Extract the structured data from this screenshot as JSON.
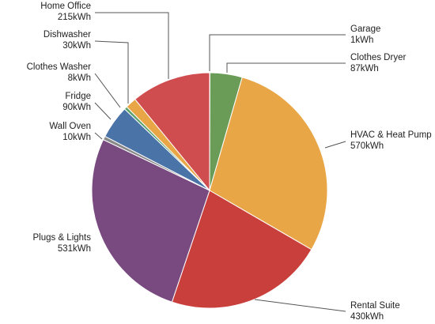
{
  "chart_data": {
    "type": "pie",
    "title": "",
    "unit": "kWh",
    "slices": [
      {
        "name": "Garage",
        "value": 1,
        "value_label": "1kWh",
        "color": "#6a9c57"
      },
      {
        "name": "Clothes Dryer",
        "value": 87,
        "value_label": "87kWh",
        "color": "#6a9c57"
      },
      {
        "name": "HVAC & Heat Pump",
        "value": 570,
        "value_label": "570kWh",
        "color": "#e9a646"
      },
      {
        "name": "Rental Suite",
        "value": 430,
        "value_label": "430kWh",
        "color": "#c93f3c"
      },
      {
        "name": "Plugs & Lights",
        "value": 531,
        "value_label": "531kWh",
        "color": "#784a80"
      },
      {
        "name": "Wall Oven",
        "value": 10,
        "value_label": "10kWh",
        "color": "#8a8a8a"
      },
      {
        "name": "Fridge",
        "value": 90,
        "value_label": "90kWh",
        "color": "#4a73a8"
      },
      {
        "name": "Clothes Washer",
        "value": 8,
        "value_label": "8kWh",
        "color": "#5aa06a"
      },
      {
        "name": "Dishwasher",
        "value": 30,
        "value_label": "30kWh",
        "color": "#e9a646"
      },
      {
        "name": "Home Office",
        "value": 215,
        "value_label": "215kWh",
        "color": "#d04d4f"
      }
    ]
  }
}
